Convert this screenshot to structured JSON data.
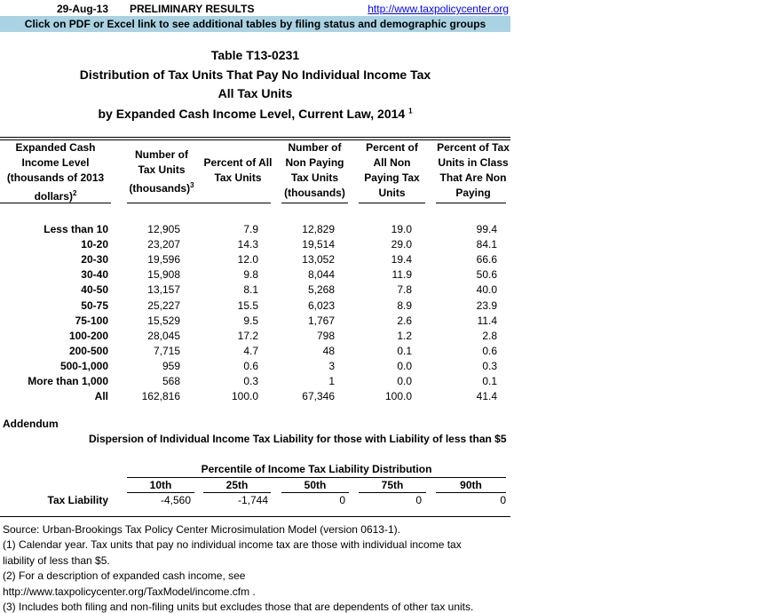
{
  "top": {
    "date": "29-Aug-13",
    "status": "PRELIMINARY RESULTS",
    "link": "http://www.taxpolicycenter.org",
    "banner": "Click on PDF or Excel link to see additional tables by filing status and demographic groups",
    "banner_color": "#a9d3e3"
  },
  "title": {
    "line1": "Table T13-0231",
    "line2": "Distribution of Tax Units That Pay No Individual Income Tax",
    "line3": "All Tax Units",
    "line4": "by Expanded Cash Income Level, Current Law, 2014",
    "line4_sup": "1"
  },
  "columns": [
    {
      "text": "Expanded Cash Income Level (thousands of 2013 dollars)",
      "sup": "2"
    },
    {
      "text": "Number of Tax Units (thousands)",
      "sup": "3"
    },
    {
      "text": "Percent of All Tax Units",
      "sup": ""
    },
    {
      "text": "Number of Non Paying Tax Units (thousands)",
      "sup": ""
    },
    {
      "text": "Percent of All Non Paying Tax Units",
      "sup": ""
    },
    {
      "text": "Percent of Tax Units in Class That Are Non Paying",
      "sup": ""
    }
  ],
  "rows": [
    [
      "Less than 10",
      "12,905",
      "7.9",
      "12,829",
      "19.0",
      "99.4"
    ],
    [
      "10-20",
      "23,207",
      "14.3",
      "19,514",
      "29.0",
      "84.1"
    ],
    [
      "20-30",
      "19,596",
      "12.0",
      "13,052",
      "19.4",
      "66.6"
    ],
    [
      "30-40",
      "15,908",
      "9.8",
      "8,044",
      "11.9",
      "50.6"
    ],
    [
      "40-50",
      "13,157",
      "8.1",
      "5,268",
      "7.8",
      "40.0"
    ],
    [
      "50-75",
      "25,227",
      "15.5",
      "6,023",
      "8.9",
      "23.9"
    ],
    [
      "75-100",
      "15,529",
      "9.5",
      "1,767",
      "2.6",
      "11.4"
    ],
    [
      "100-200",
      "28,045",
      "17.2",
      "798",
      "1.2",
      "2.8"
    ],
    [
      "200-500",
      "7,715",
      "4.7",
      "48",
      "0.1",
      "0.6"
    ],
    [
      "500-1,000",
      "959",
      "0.6",
      "3",
      "0.0",
      "0.3"
    ],
    [
      "More than 1,000",
      "568",
      "0.3",
      "1",
      "0.0",
      "0.1"
    ],
    [
      "All",
      "162,816",
      "100.0",
      "67,346",
      "100.0",
      "41.4"
    ]
  ],
  "addendum": {
    "label": "Addendum",
    "title": "Dispersion of Individual Income Tax Liability for those with Liability of less than $5",
    "group_header": "Percentile of Income Tax Liability Distribution",
    "percentiles": [
      "10th",
      "25th",
      "50th",
      "75th",
      "90th"
    ],
    "row_label": "Tax Liability",
    "values": [
      "-4,560",
      "-1,744",
      "0",
      "0",
      "0"
    ]
  },
  "notes": [
    "Source: Urban-Brookings Tax Policy Center Microsimulation Model (version 0613-1).",
    "(1) Calendar year. Tax units that pay no individual income tax are those with individual income tax",
    "liability of less than $5.",
    "(2) For a description of expanded cash income, see",
    "http://www.taxpolicycenter.org/TaxModel/income.cfm .",
    "(3) Includes both filing and non-filing units but excludes those that are dependents of other tax units."
  ]
}
